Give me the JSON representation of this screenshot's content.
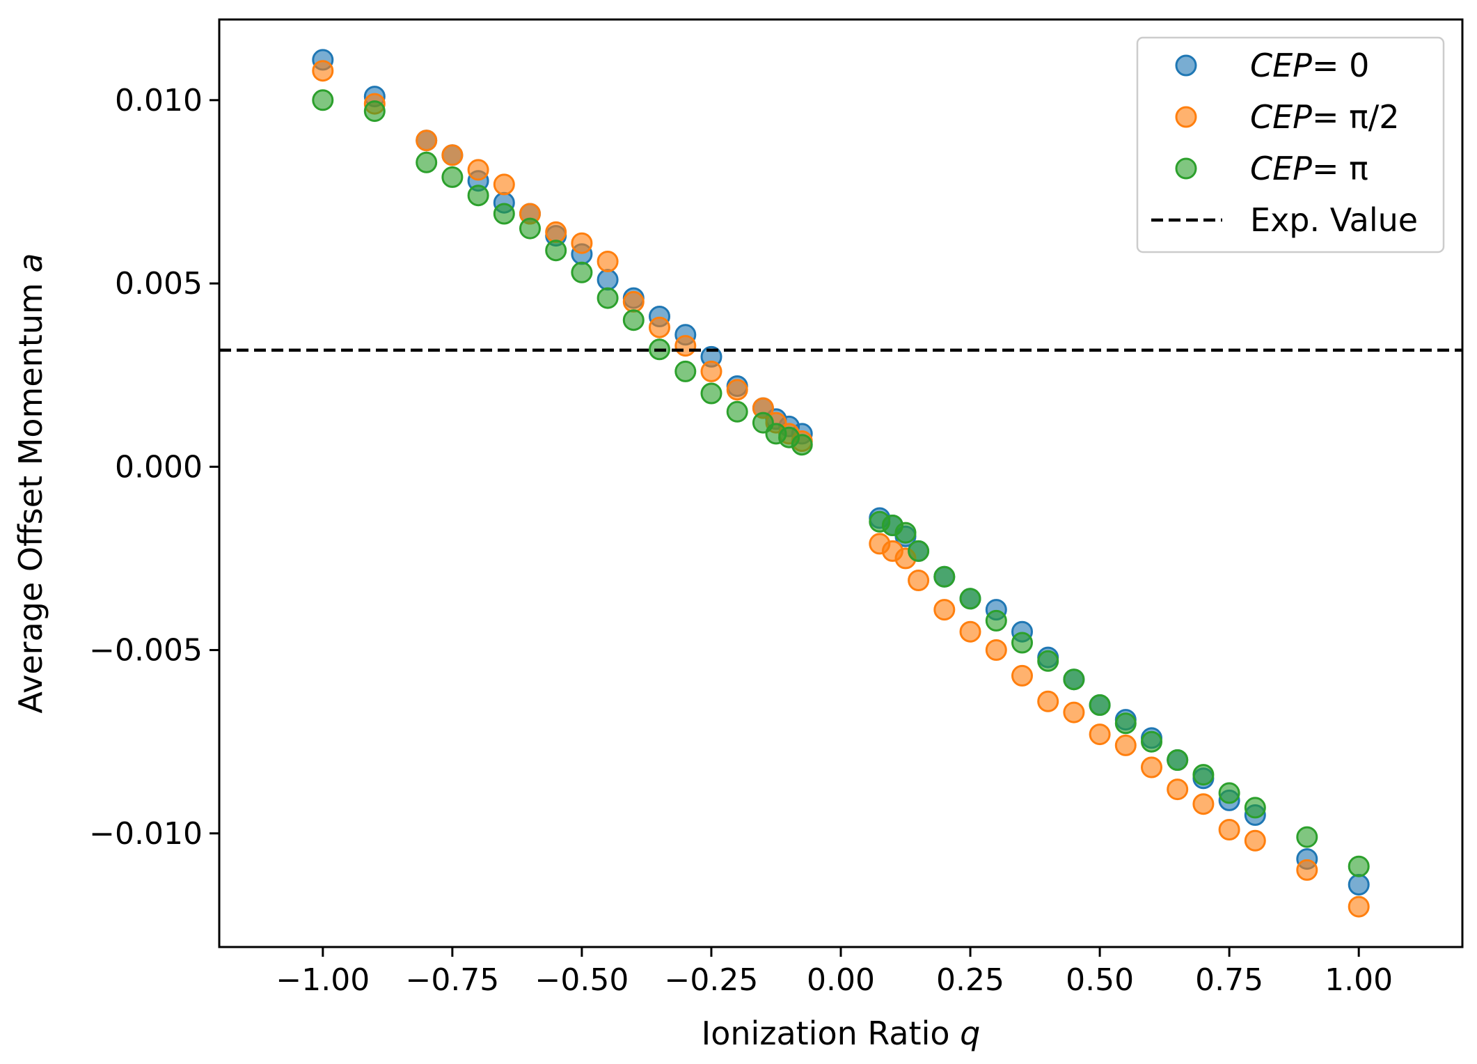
{
  "chart_data": {
    "type": "scatter",
    "title": "",
    "xlabel": "Ionization Ratio",
    "xlabel_var": "q",
    "ylabel": "Average Offset Momentum",
    "ylabel_var": "a",
    "xlim": [
      -1.2,
      1.2
    ],
    "ylim": [
      -0.0131,
      0.0122
    ],
    "xticks": [
      -1.0,
      -0.75,
      -0.5,
      -0.25,
      0.0,
      0.25,
      0.5,
      0.75,
      1.0
    ],
    "xtick_labels": [
      "−1.00",
      "−0.75",
      "−0.50",
      "−0.25",
      "0.00",
      "0.25",
      "0.50",
      "0.75",
      "1.00"
    ],
    "yticks": [
      0.01,
      0.005,
      0.0,
      -0.005,
      -0.01
    ],
    "ytick_labels": [
      "0.010",
      "0.005",
      "0.000",
      "−0.005",
      "−0.010"
    ],
    "grid": false,
    "legend_position": "top-right",
    "reference_line": {
      "label": "Exp. Value",
      "value": 0.00318,
      "style": "dashed",
      "color": "#000000"
    },
    "series": [
      {
        "name": "CEP = 0",
        "legend_math": "CEP",
        "legend_rhs": "= 0",
        "color": "#1f77b4",
        "x": [
          -1.0,
          -0.9,
          -0.8,
          -0.75,
          -0.7,
          -0.65,
          -0.6,
          -0.55,
          -0.5,
          -0.45,
          -0.4,
          -0.35,
          -0.3,
          -0.25,
          -0.2,
          -0.15,
          -0.125,
          -0.1,
          -0.075,
          0.075,
          0.1,
          0.125,
          0.15,
          0.2,
          0.25,
          0.3,
          0.35,
          0.4,
          0.45,
          0.5,
          0.55,
          0.6,
          0.65,
          0.7,
          0.75,
          0.8,
          0.9,
          1.0
        ],
        "y": [
          0.0111,
          0.0101,
          0.0089,
          0.0085,
          0.0078,
          0.0072,
          0.0069,
          0.0063,
          0.0058,
          0.0051,
          0.0046,
          0.0041,
          0.0036,
          0.003,
          0.0022,
          0.0016,
          0.0013,
          0.0011,
          0.0009,
          -0.0014,
          -0.0016,
          -0.0019,
          -0.0023,
          -0.003,
          -0.0036,
          -0.0039,
          -0.0045,
          -0.0052,
          -0.0058,
          -0.0065,
          -0.0069,
          -0.0074,
          -0.008,
          -0.0085,
          -0.0091,
          -0.0095,
          -0.0107,
          -0.0114
        ]
      },
      {
        "name": "CEP = π/2",
        "legend_math": "CEP",
        "legend_rhs": "= π/2",
        "color": "#ff7f0e",
        "x": [
          -1.0,
          -0.9,
          -0.8,
          -0.75,
          -0.7,
          -0.65,
          -0.6,
          -0.55,
          -0.5,
          -0.45,
          -0.4,
          -0.35,
          -0.3,
          -0.25,
          -0.2,
          -0.15,
          -0.125,
          -0.1,
          -0.075,
          0.075,
          0.1,
          0.125,
          0.15,
          0.2,
          0.25,
          0.3,
          0.35,
          0.4,
          0.45,
          0.5,
          0.55,
          0.6,
          0.65,
          0.7,
          0.75,
          0.8,
          0.9,
          1.0
        ],
        "y": [
          0.0108,
          0.0099,
          0.0089,
          0.0085,
          0.0081,
          0.0077,
          0.0069,
          0.0064,
          0.0061,
          0.0056,
          0.0045,
          0.0038,
          0.0033,
          0.0026,
          0.0021,
          0.0016,
          0.0012,
          0.0009,
          0.0007,
          -0.0021,
          -0.0023,
          -0.0025,
          -0.0031,
          -0.0039,
          -0.0045,
          -0.005,
          -0.0057,
          -0.0064,
          -0.0067,
          -0.0073,
          -0.0076,
          -0.0082,
          -0.0088,
          -0.0092,
          -0.0099,
          -0.0102,
          -0.011,
          -0.012
        ]
      },
      {
        "name": "CEP = π",
        "legend_math": "CEP",
        "legend_rhs": "= π",
        "color": "#2ca02c",
        "x": [
          -1.0,
          -0.9,
          -0.8,
          -0.75,
          -0.7,
          -0.65,
          -0.6,
          -0.55,
          -0.5,
          -0.45,
          -0.4,
          -0.35,
          -0.3,
          -0.25,
          -0.2,
          -0.15,
          -0.125,
          -0.1,
          -0.075,
          0.075,
          0.1,
          0.125,
          0.15,
          0.2,
          0.25,
          0.3,
          0.35,
          0.4,
          0.45,
          0.5,
          0.55,
          0.6,
          0.65,
          0.7,
          0.75,
          0.8,
          0.9,
          1.0
        ],
        "y": [
          0.01,
          0.0097,
          0.0083,
          0.0079,
          0.0074,
          0.0069,
          0.0065,
          0.0059,
          0.0053,
          0.0046,
          0.004,
          0.0032,
          0.0026,
          0.002,
          0.0015,
          0.0012,
          0.0009,
          0.0008,
          0.0006,
          -0.0015,
          -0.0016,
          -0.0018,
          -0.0023,
          -0.003,
          -0.0036,
          -0.0042,
          -0.0048,
          -0.0053,
          -0.0058,
          -0.0065,
          -0.007,
          -0.0075,
          -0.008,
          -0.0084,
          -0.0089,
          -0.0093,
          -0.0101,
          -0.0109
        ]
      }
    ]
  }
}
